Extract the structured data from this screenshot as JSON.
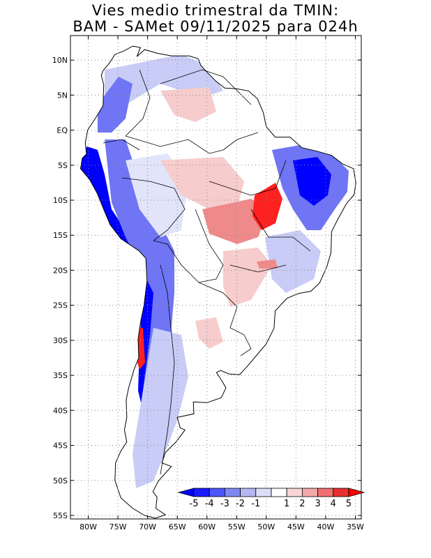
{
  "title": {
    "line1": "Vies medio trimestral da TMIN:",
    "line2": "BAM - SAMet 09/11/2025  para 024h"
  },
  "axes": {
    "lat_labels": [
      "10N",
      "5N",
      "EQ",
      "5S",
      "10S",
      "15S",
      "20S",
      "25S",
      "30S",
      "35S",
      "40S",
      "45S",
      "50S",
      "55S"
    ],
    "lat_values": [
      10,
      5,
      0,
      -5,
      -10,
      -15,
      -20,
      -25,
      -30,
      -35,
      -40,
      -45,
      -50,
      -55
    ],
    "lon_labels": [
      "80W",
      "75W",
      "70W",
      "65W",
      "60W",
      "55W",
      "50W",
      "45W",
      "40W",
      "35W"
    ],
    "lon_values": [
      -80,
      -75,
      -70,
      -65,
      -60,
      -55,
      -50,
      -45,
      -40,
      -35
    ],
    "lon_range": [
      -83,
      -34
    ],
    "lat_range": [
      -55.5,
      13.5
    ]
  },
  "colorbar": {
    "labels": [
      "-5",
      "-4",
      "-3",
      "-2",
      "-1",
      "1",
      "2",
      "3",
      "4",
      "5"
    ],
    "colors": [
      "#1a1aff",
      "#4d55ff",
      "#8088f0",
      "#b3b8f2",
      "#dcdff8",
      "#ffffff",
      "#f8d6d6",
      "#f2aaaa",
      "#ee7070",
      "#e83030",
      "#ff0000"
    ],
    "low_arrow_color": "#0000ff",
    "high_arrow_color": "#ff0000"
  },
  "map_colors": {
    "strong_blue": "#0000ff",
    "mid_blue": "#6f75f4",
    "light_blue": "#c8ccf6",
    "pale_blue": "#e2e4fa",
    "light_red": "#f6cccc",
    "mid_red": "#ee8a8a",
    "strong_red": "#ff2020"
  }
}
